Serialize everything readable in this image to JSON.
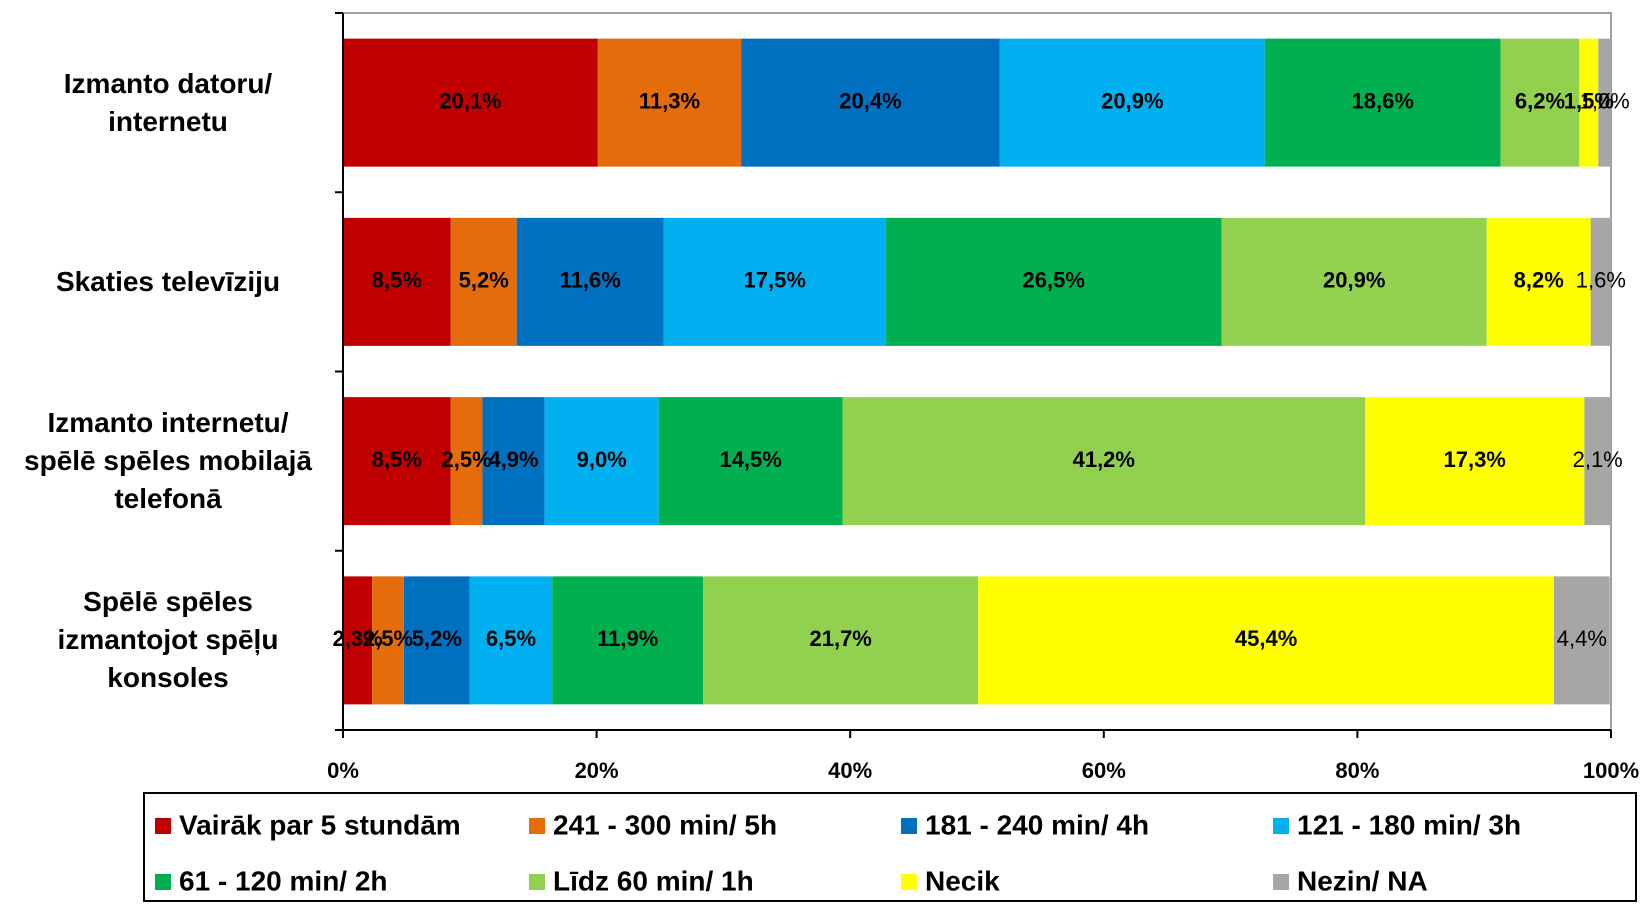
{
  "chart_data": {
    "type": "stacked_bar_horizontal",
    "categories": [
      "Izmanto datoru/ internetu",
      "Skaties televīziju",
      "Izmanto internetu/ spēlē spēles mobilajā telefonā",
      "Spēlē spēles izmantojot spēļu konsoles"
    ],
    "xlim": [
      0,
      100
    ],
    "xticks": [
      {
        "value": 0,
        "label": "0%"
      },
      {
        "value": 20,
        "label": "20%"
      },
      {
        "value": 40,
        "label": "40%"
      },
      {
        "value": 60,
        "label": "60%"
      },
      {
        "value": 80,
        "label": "80%"
      },
      {
        "value": 100,
        "label": "100%"
      }
    ],
    "series": [
      {
        "name": "Vairāk par 5 stundām",
        "color": "#c00000",
        "bold_labels": true,
        "values": [
          20.1,
          8.5,
          8.5,
          2.3
        ],
        "value_labels": [
          "20,1%",
          "8,5%",
          "8,5%",
          "2,3%"
        ]
      },
      {
        "name": "241 - 300 min/ 5h",
        "color": "#e46c0a",
        "bold_labels": true,
        "values": [
          11.3,
          5.2,
          2.5,
          2.5
        ],
        "value_labels": [
          "11,3%",
          "5,2%",
          "2,5%",
          "2,5%"
        ]
      },
      {
        "name": "181 - 240 min/ 4h",
        "color": "#0070c0",
        "bold_labels": true,
        "values": [
          20.4,
          11.6,
          4.9,
          5.2
        ],
        "value_labels": [
          "20,4%",
          "11,6%",
          "4,9%",
          "5,2%"
        ]
      },
      {
        "name": "121 - 180 min/ 3h",
        "color": "#00b0f0",
        "bold_labels": true,
        "values": [
          20.9,
          17.5,
          9.0,
          6.5
        ],
        "value_labels": [
          "20,9%",
          "17,5%",
          "9,0%",
          "6,5%"
        ]
      },
      {
        "name": "61 - 120 min/ 2h",
        "color": "#00b050",
        "bold_labels": true,
        "values": [
          18.6,
          26.5,
          14.5,
          11.9
        ],
        "value_labels": [
          "18,6%",
          "26,5%",
          "14,5%",
          "11,9%"
        ]
      },
      {
        "name": "Līdz 60 min/ 1h",
        "color": "#92d050",
        "bold_labels": true,
        "values": [
          6.2,
          20.9,
          41.2,
          21.7
        ],
        "value_labels": [
          "6,2%",
          "20,9%",
          "41,2%",
          "21,7%"
        ]
      },
      {
        "name": "Necik",
        "color": "#ffff00",
        "bold_labels": true,
        "values": [
          1.5,
          8.2,
          17.3,
          45.4
        ],
        "value_labels": [
          "1,5%",
          "8,2%",
          "17,3%",
          "45,4%"
        ]
      },
      {
        "name": "Nezin/ NA",
        "color": "#a6a6a6",
        "bold_labels": false,
        "values": [
          1.0,
          1.6,
          2.1,
          4.4
        ],
        "value_labels": [
          "1,0%",
          "1,6%",
          "2,1%",
          "4,4%"
        ]
      }
    ]
  }
}
